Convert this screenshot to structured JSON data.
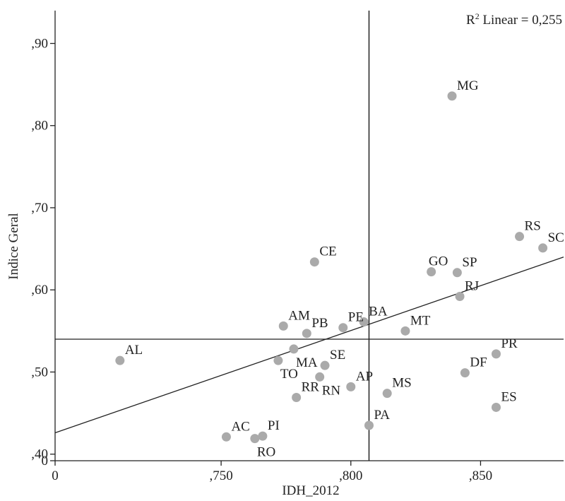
{
  "chart_data": {
    "type": "scatter",
    "xlabel": "IDH_2012",
    "ylabel": "Indice Geral",
    "xlim": [
      0.686,
      0.882
    ],
    "ylim": [
      0.392,
      0.94
    ],
    "axis_origin_labels": {
      "x": "0",
      "y": "0"
    },
    "x_ticks": [
      {
        "value": 0.75,
        "label": ",750"
      },
      {
        "value": 0.8,
        "label": ",800"
      },
      {
        "value": 0.85,
        "label": ",850"
      }
    ],
    "y_ticks": [
      {
        "value": 0.4,
        "label": ",40"
      },
      {
        "value": 0.5,
        "label": ",50"
      },
      {
        "value": 0.6,
        "label": ",60"
      },
      {
        "value": 0.7,
        "label": ",70"
      },
      {
        "value": 0.8,
        "label": ",80"
      },
      {
        "value": 0.9,
        "label": ",90"
      }
    ],
    "annotation": {
      "main": "R",
      "sup": "2",
      "rest": " Linear = 0,255"
    },
    "reference_lines": {
      "x_mean": 0.807,
      "y_mean": 0.54
    },
    "fit_line": {
      "x1": 0.686,
      "y1": 0.426,
      "x2": 0.882,
      "y2": 0.64
    },
    "marker_color": "#aaaaaa",
    "points": [
      {
        "label": "AL",
        "x": 0.711,
        "y": 0.514,
        "pos": "ur"
      },
      {
        "label": "AC",
        "x": 0.752,
        "y": 0.421,
        "pos": "ur"
      },
      {
        "label": "RO",
        "x": 0.763,
        "y": 0.419,
        "pos": "br"
      },
      {
        "label": "PI",
        "x": 0.766,
        "y": 0.422,
        "pos": "ur"
      },
      {
        "label": "TO",
        "x": 0.772,
        "y": 0.514,
        "pos": "br"
      },
      {
        "label": "AM",
        "x": 0.774,
        "y": 0.556,
        "pos": "ur"
      },
      {
        "label": "MA",
        "x": 0.778,
        "y": 0.528,
        "pos": "br"
      },
      {
        "label": "RR",
        "x": 0.779,
        "y": 0.469,
        "pos": "ur"
      },
      {
        "label": "PB",
        "x": 0.783,
        "y": 0.547,
        "pos": "ur"
      },
      {
        "label": "CE",
        "x": 0.786,
        "y": 0.634,
        "pos": "ur"
      },
      {
        "label": "RN",
        "x": 0.788,
        "y": 0.494,
        "pos": "br"
      },
      {
        "label": "SE",
        "x": 0.79,
        "y": 0.508,
        "pos": "ur"
      },
      {
        "label": "PE",
        "x": 0.797,
        "y": 0.554,
        "pos": "ur"
      },
      {
        "label": "AP",
        "x": 0.8,
        "y": 0.482,
        "pos": "ur"
      },
      {
        "label": "BA",
        "x": 0.805,
        "y": 0.561,
        "pos": "ur"
      },
      {
        "label": "PA",
        "x": 0.807,
        "y": 0.435,
        "pos": "ur"
      },
      {
        "label": "MS",
        "x": 0.814,
        "y": 0.474,
        "pos": "ur"
      },
      {
        "label": "MT",
        "x": 0.821,
        "y": 0.55,
        "pos": "ur"
      },
      {
        "label": "GO",
        "x": 0.831,
        "y": 0.622,
        "pos": "ul"
      },
      {
        "label": "MG",
        "x": 0.839,
        "y": 0.836,
        "pos": "ur"
      },
      {
        "label": "SP",
        "x": 0.841,
        "y": 0.621,
        "pos": "ur"
      },
      {
        "label": "RJ",
        "x": 0.842,
        "y": 0.592,
        "pos": "ur"
      },
      {
        "label": "DF",
        "x": 0.844,
        "y": 0.499,
        "pos": "ur"
      },
      {
        "label": "ES",
        "x": 0.856,
        "y": 0.457,
        "pos": "ur"
      },
      {
        "label": "PR",
        "x": 0.856,
        "y": 0.522,
        "pos": "ur"
      },
      {
        "label": "RS",
        "x": 0.865,
        "y": 0.665,
        "pos": "ur"
      },
      {
        "label": "SC",
        "x": 0.874,
        "y": 0.651,
        "pos": "ur"
      }
    ]
  }
}
